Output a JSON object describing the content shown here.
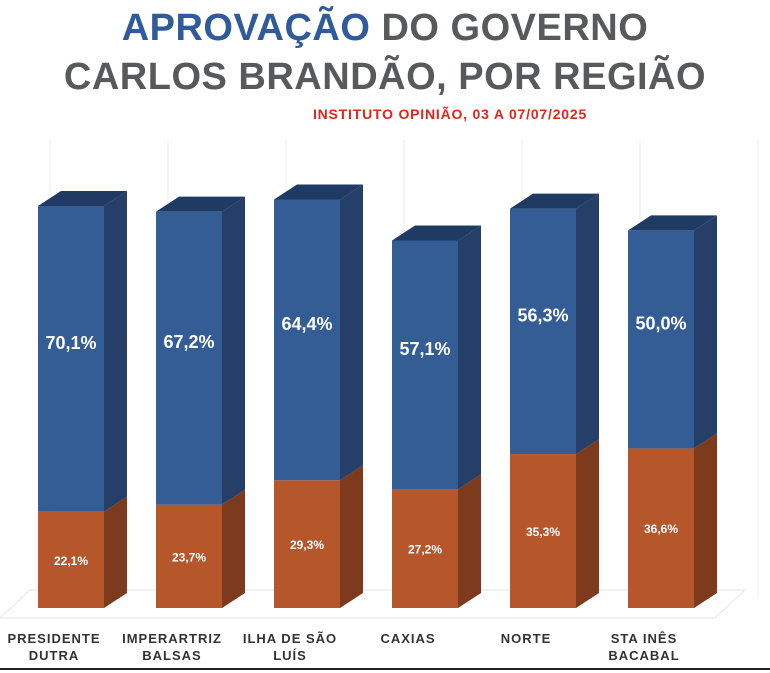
{
  "header": {
    "title_accent": "APROVAÇÃO",
    "title_rest": " DO GOVERNO",
    "title_line2": "CARLOS BRANDÃO, POR REGIÃO",
    "subtitle": "INSTITUTO OPINIÃO, 03 A 07/07/2025"
  },
  "colors": {
    "title_gray": "#58595b",
    "accent_blue": "#2f5a9b",
    "subtitle_red": "#e0251b",
    "approve_front": "#345d96",
    "approve_side": "#253f68",
    "approve_top": "#1f3a63",
    "disapprove_front": "#b5562b",
    "disapprove_side": "#7d3a1d"
  },
  "chart_data": {
    "type": "bar",
    "stacked": true,
    "categories": [
      [
        "PRESIDENTE",
        "DUTRA"
      ],
      [
        "IMPERARTRIZ",
        "BALSAS"
      ],
      [
        "ILHA DE SÃO",
        "LUÍS"
      ],
      [
        "CAXIAS"
      ],
      [
        "NORTE"
      ],
      [
        "STA INÊS",
        "BACABAL"
      ]
    ],
    "series": [
      {
        "values": [
          22.1,
          23.7,
          29.3,
          27.2,
          35.3,
          36.6
        ],
        "labels": [
          "22,1%",
          "23,7%",
          "29,3%",
          "27,2%",
          "35,3%",
          "36,6%"
        ]
      },
      {
        "values": [
          70.1,
          67.2,
          64.4,
          57.1,
          56.3,
          50.0
        ],
        "labels": [
          "70,1%",
          "67,2%",
          "64,4%",
          "57,1%",
          "56,3%",
          "50,0%"
        ]
      }
    ],
    "ylim": [
      0,
      100
    ],
    "grid": false,
    "legend": "none"
  }
}
